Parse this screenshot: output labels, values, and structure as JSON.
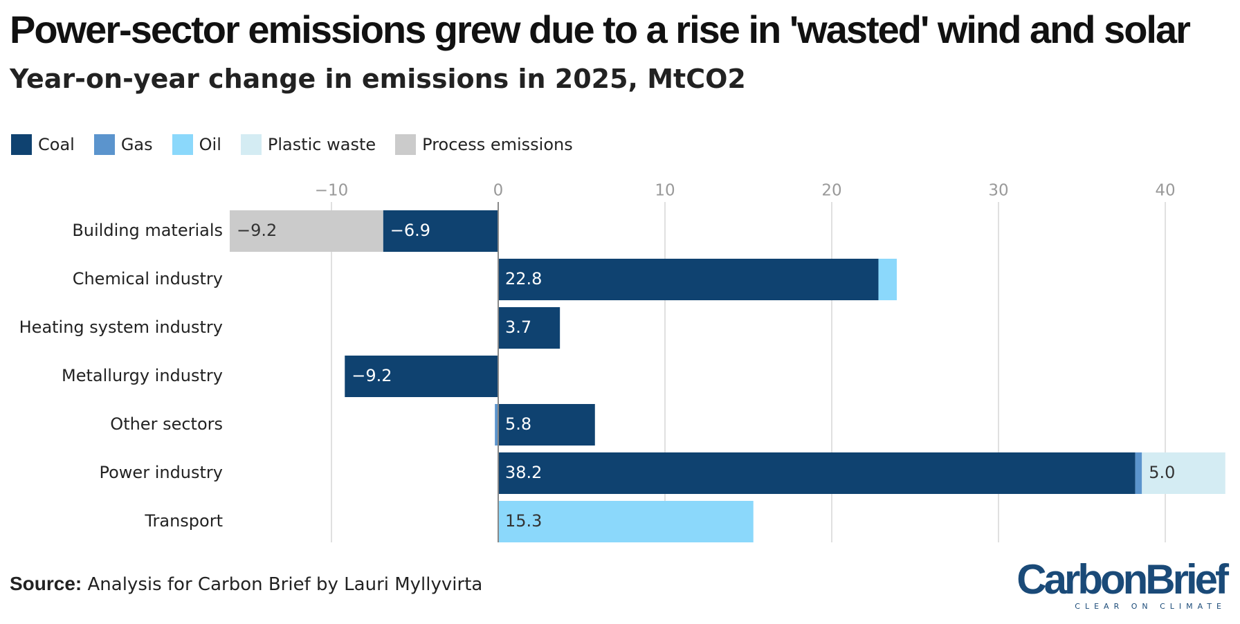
{
  "header": {
    "title": "Power-sector emissions grew due to a rise in 'wasted' wind and solar",
    "subtitle": "Year-on-year change in emissions in 2025, MtCO2"
  },
  "legend": [
    {
      "label": "Coal",
      "color": "#0f4270"
    },
    {
      "label": "Gas",
      "color": "#5b94cd"
    },
    {
      "label": "Oil",
      "color": "#8bd8fb"
    },
    {
      "label": "Plastic waste",
      "color": "#d4ecf3"
    },
    {
      "label": "Process emissions",
      "color": "#cbcbcb"
    }
  ],
  "chart_data": {
    "type": "bar",
    "orientation": "horizontal",
    "stacked": true,
    "categories": [
      "Building materials",
      "Chemical industry",
      "Heating system industry",
      "Metallurgy industry",
      "Other sectors",
      "Power industry",
      "Transport"
    ],
    "xlim": [
      -16,
      44
    ],
    "x_ticks": [
      "−10",
      "0",
      "10",
      "20",
      "30",
      "40"
    ],
    "x_tick_values": [
      -10,
      0,
      10,
      20,
      30,
      40
    ],
    "grid": true,
    "legend_position": "top-left",
    "series": [
      {
        "name": "Coal",
        "color": "#0f4270",
        "values": [
          -6.9,
          22.8,
          3.7,
          -9.2,
          5.8,
          38.2,
          0
        ],
        "labels": [
          "−6.9",
          "22.8",
          "3.7",
          "−9.2",
          "5.8",
          "38.2",
          ""
        ]
      },
      {
        "name": "Gas",
        "color": "#5b94cd",
        "values": [
          0,
          0,
          0,
          0,
          -0.2,
          0.4,
          0
        ],
        "labels": [
          "",
          "",
          "",
          "",
          "",
          "",
          ""
        ]
      },
      {
        "name": "Oil",
        "color": "#8bd8fb",
        "values": [
          0,
          1.1,
          0,
          0,
          0,
          0,
          15.3
        ],
        "labels": [
          "",
          "",
          "",
          "",
          "",
          "",
          "15.3"
        ]
      },
      {
        "name": "Plastic waste",
        "color": "#d4ecf3",
        "values": [
          0,
          0,
          0,
          0,
          0,
          5.0,
          0
        ],
        "labels": [
          "",
          "",
          "",
          "",
          "",
          "5.0",
          ""
        ]
      },
      {
        "name": "Process emissions",
        "color": "#cbcbcb",
        "values": [
          -9.2,
          0,
          0,
          0,
          0,
          0,
          0
        ],
        "labels": [
          "−9.2",
          "",
          "",
          "",
          "",
          "",
          ""
        ]
      }
    ]
  },
  "footer": {
    "source_label": "Source:",
    "source_text": "Analysis for Carbon Brief by Lauri Myllyvirta",
    "logo_text": "CarbonBrief",
    "logo_tagline": "CLEAR ON CLIMATE"
  }
}
